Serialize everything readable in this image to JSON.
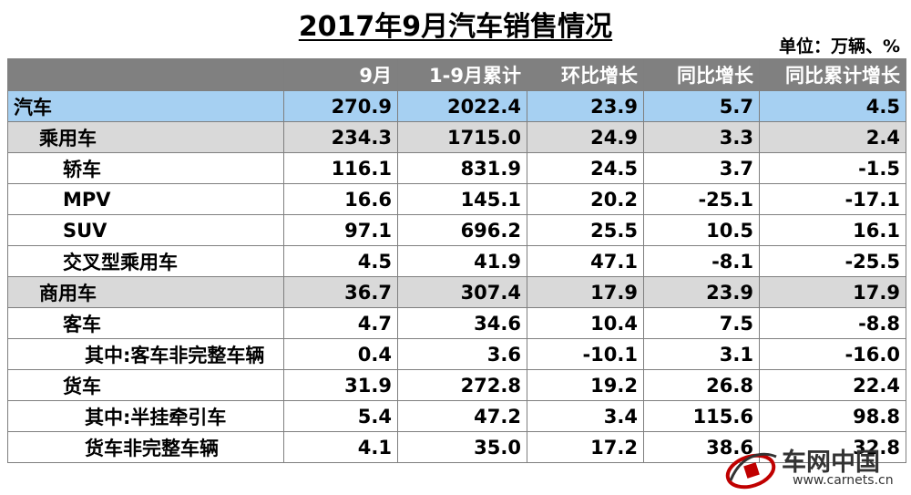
{
  "title": "2017年9月汽车销售情况",
  "unit": "单位：万辆、%",
  "columns": [
    "",
    "9月",
    "1-9月累计",
    "环比增长",
    "同比增长",
    "同比累计增长"
  ],
  "rows": [
    {
      "name": "汽车",
      "level": 0,
      "values": [
        "270.9",
        "2022.4",
        "23.9",
        "5.7",
        "4.5"
      ]
    },
    {
      "name": "乘用车",
      "level": 1,
      "values": [
        "234.3",
        "1715.0",
        "24.9",
        "3.3",
        "2.4"
      ]
    },
    {
      "name": "轿车",
      "level": 2,
      "values": [
        "116.1",
        "831.9",
        "24.5",
        "3.7",
        "-1.5"
      ]
    },
    {
      "name": "MPV",
      "level": 2,
      "values": [
        "16.6",
        "145.1",
        "20.2",
        "-25.1",
        "-17.1"
      ]
    },
    {
      "name": "SUV",
      "level": 2,
      "values": [
        "97.1",
        "696.2",
        "25.5",
        "10.5",
        "16.1"
      ]
    },
    {
      "name": "交叉型乘用车",
      "level": 2,
      "values": [
        "4.5",
        "41.9",
        "47.1",
        "-8.1",
        "-25.5"
      ]
    },
    {
      "name": "商用车",
      "level": 1,
      "values": [
        "36.7",
        "307.4",
        "17.9",
        "23.9",
        "17.9"
      ]
    },
    {
      "name": "客车",
      "level": 2,
      "values": [
        "4.7",
        "34.6",
        "10.4",
        "7.5",
        "-8.8"
      ]
    },
    {
      "name": "其中:客车非完整车辆",
      "level": 3,
      "values": [
        "0.4",
        "3.6",
        "-10.1",
        "3.1",
        "-16.0"
      ]
    },
    {
      "name": "货车",
      "level": 2,
      "values": [
        "31.9",
        "272.8",
        "19.2",
        "26.8",
        "22.4"
      ]
    },
    {
      "name": "其中:半挂牵引车",
      "level": 3,
      "values": [
        "5.4",
        "47.2",
        "3.4",
        "115.6",
        "98.8"
      ]
    },
    {
      "name": "货车非完整车辆",
      "level": 3,
      "values": [
        "4.1",
        "35.0",
        "17.2",
        "38.6",
        "32.8"
      ]
    }
  ],
  "watermark": {
    "brand": "车网中国",
    "url": "www.carnets.cn"
  },
  "colors": {
    "header_bg": "#808080",
    "total_row_bg": "#a6d0f2",
    "category_row_bg": "#d9d9d9"
  }
}
